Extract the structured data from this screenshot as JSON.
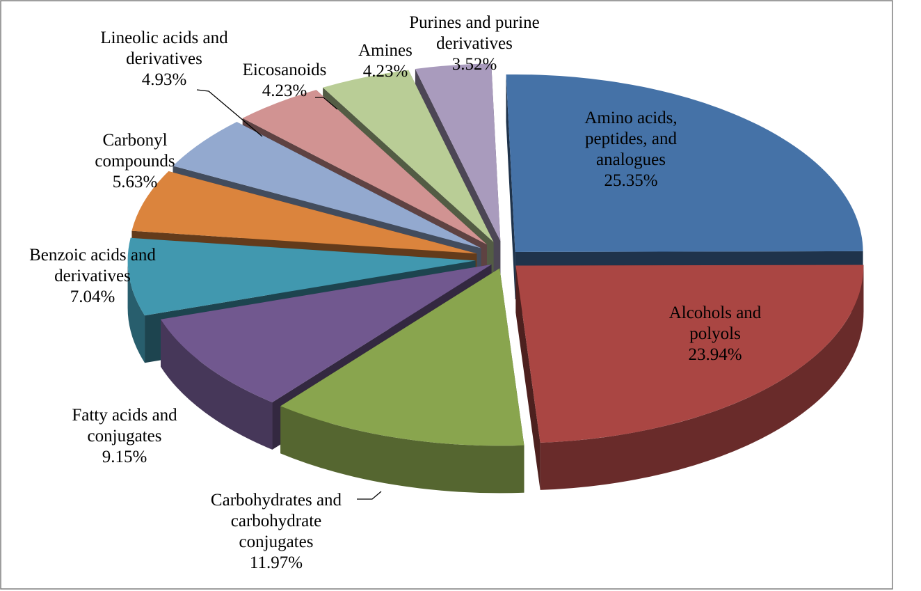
{
  "chart_data": {
    "type": "pie",
    "title": "",
    "unit": "%",
    "slices": [
      {
        "label": "Amino acids, peptides, and analogues",
        "label_lines": [
          "Amino acids,",
          "peptides, and",
          "analogues"
        ],
        "value": 25.35,
        "value_label": "25.35%",
        "color": "#4572A7"
      },
      {
        "label": "Alcohols and polyols",
        "label_lines": [
          "Alcohols and",
          "polyols"
        ],
        "value": 23.94,
        "value_label": "23.94%",
        "color": "#AA4643"
      },
      {
        "label": "Carbohydrates and carbohydrate conjugates",
        "label_lines": [
          "Carbohydrates and",
          "carbohydrate",
          "conjugates"
        ],
        "value": 11.97,
        "value_label": "11.97%",
        "color": "#89A54E"
      },
      {
        "label": "Fatty acids and conjugates",
        "label_lines": [
          "Fatty acids and",
          "conjugates"
        ],
        "value": 9.15,
        "value_label": "9.15%",
        "color": "#71588F"
      },
      {
        "label": "Benzoic acids and derivatives",
        "label_lines": [
          "Benzoic acids and",
          "derivatives"
        ],
        "value": 7.04,
        "value_label": "7.04%",
        "color": "#4198AF"
      },
      {
        "label": "Carbonyl compounds",
        "label_lines": [
          "Carbonyl",
          "compounds"
        ],
        "value": 5.63,
        "value_label": "5.63%",
        "color": "#DB843D"
      },
      {
        "label": "Lineolic acids and derivatives",
        "label_lines": [
          "Lineolic acids and",
          "derivatives"
        ],
        "value": 4.93,
        "value_label": "4.93%",
        "color": "#93A9CF"
      },
      {
        "label": "Eicosanoids",
        "label_lines": [
          "Eicosanoids"
        ],
        "value": 4.23,
        "value_label": "4.23%",
        "color": "#D19392"
      },
      {
        "label": "Amines",
        "label_lines": [
          "Amines"
        ],
        "value": 4.23,
        "value_label": "4.23%",
        "color": "#B9CD96"
      },
      {
        "label": "Purines and purine derivatives",
        "label_lines": [
          "Purines and purine",
          "derivatives"
        ],
        "value": 3.52,
        "value_label": "3.52%",
        "color": "#A99BBD"
      }
    ],
    "legend": "none",
    "style": "3d-exploded"
  }
}
